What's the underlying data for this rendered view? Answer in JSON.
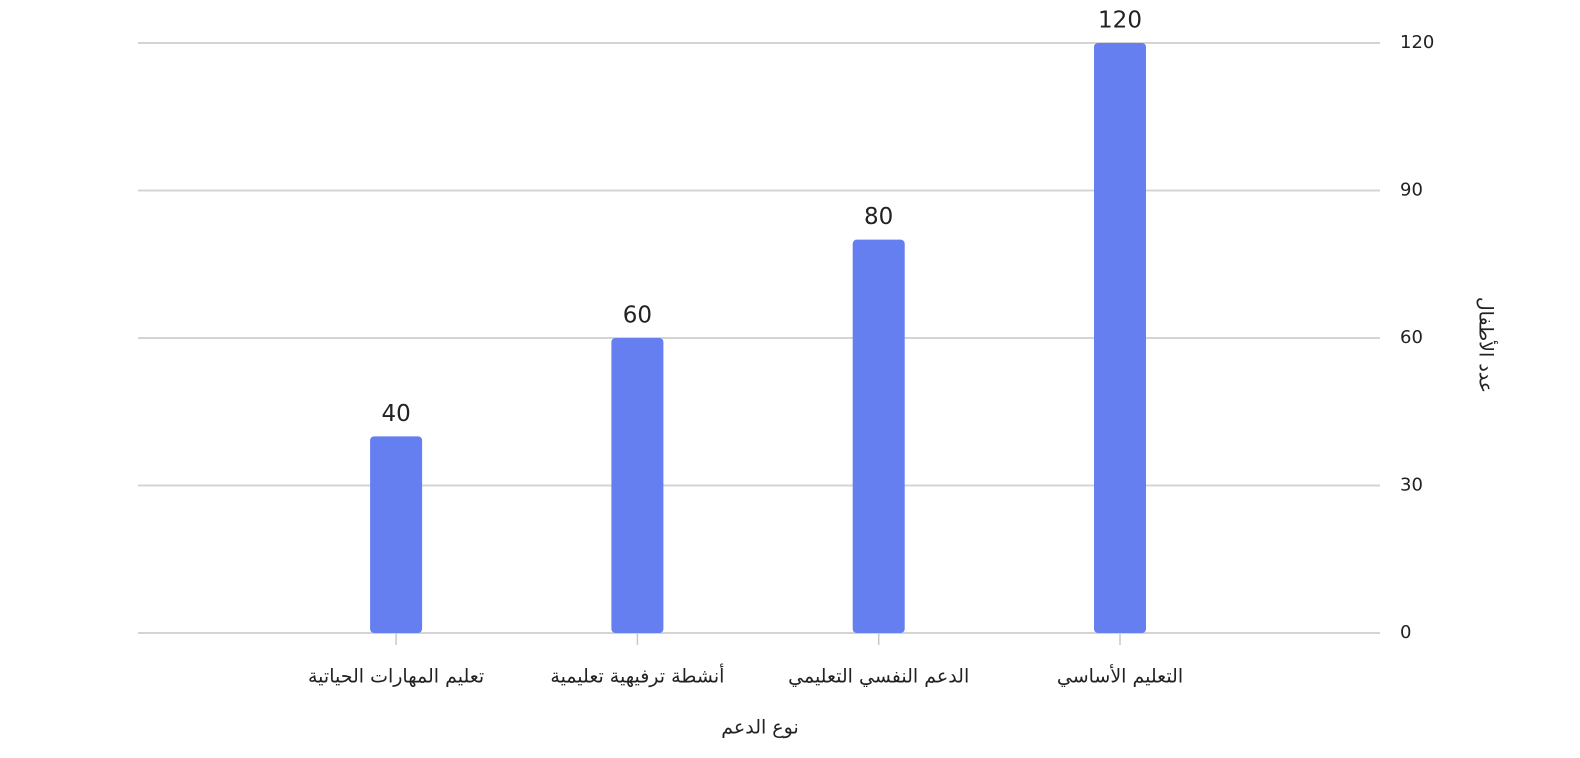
{
  "chart_data": {
    "type": "bar",
    "x_label": "نوع الدعم",
    "y_label": "عدد الأطفال",
    "categories": [
      "التعليم الأساسي",
      "الدعم النفسي التعليمي",
      "أنشطة ترفيهية تعليمية",
      "تعليم المهارات الحياتية"
    ],
    "values": [
      120,
      80,
      60,
      40
    ],
    "color": "#657ef0",
    "ylim": [
      0,
      120
    ],
    "yticks": [
      0,
      30,
      60,
      90,
      120
    ],
    "grid": true
  }
}
